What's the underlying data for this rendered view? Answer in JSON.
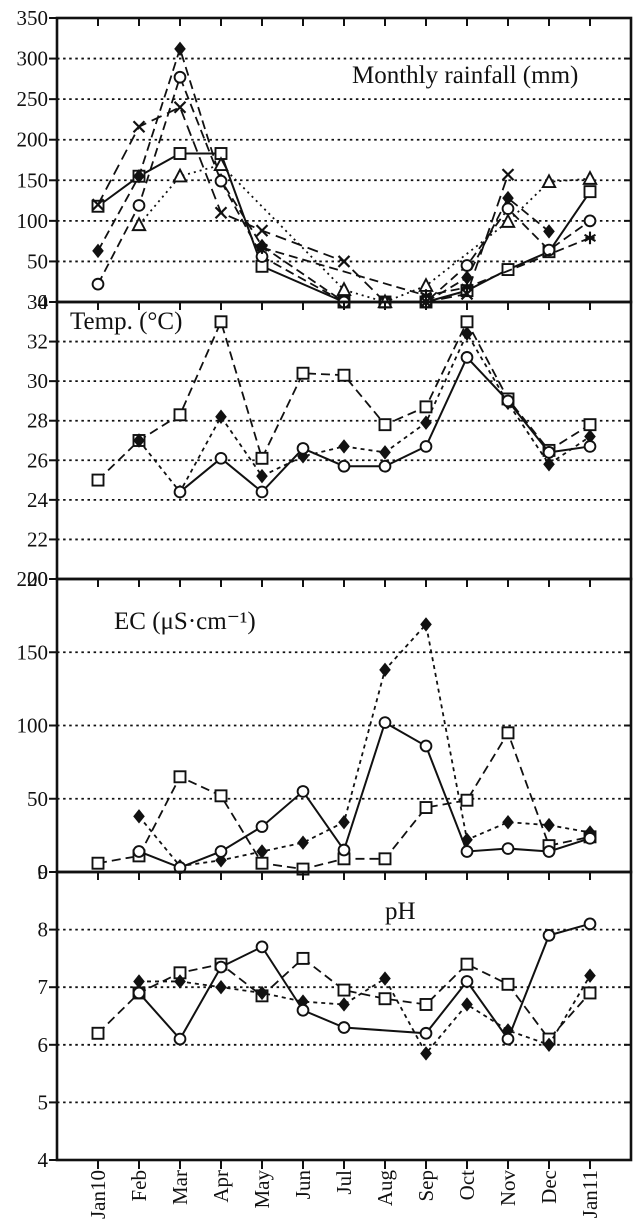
{
  "figure": {
    "ink_color": "#111111",
    "paper_color": "#ffffff",
    "months": [
      "Jan10",
      "Feb",
      "Mar",
      "Apr",
      "May",
      "Jun",
      "Jul",
      "Aug",
      "Sep",
      "Oct",
      "Nov",
      "Dec",
      "Jan11"
    ],
    "panels": [
      {
        "id": "rainfall",
        "title": "Monthly rainfall (mm)",
        "ylim": [
          0,
          350
        ],
        "yticks": [
          350,
          300,
          250,
          200,
          150,
          100,
          50,
          0
        ],
        "gridlines": [
          300,
          250,
          200,
          150,
          100,
          50
        ]
      },
      {
        "id": "temperature",
        "title": "Temp. (°C)",
        "ylim": [
          20,
          34
        ],
        "yticks": [
          34,
          32,
          30,
          28,
          26,
          24,
          22,
          20
        ],
        "gridlines": [
          32,
          30,
          28,
          26,
          24,
          22
        ]
      },
      {
        "id": "ec",
        "title": "EC (μS·cm⁻¹)",
        "ylim": [
          0,
          200
        ],
        "yticks": [
          200,
          150,
          100,
          50,
          0
        ],
        "gridlines": [
          150,
          100,
          50
        ]
      },
      {
        "id": "ph",
        "title": "pH",
        "ylim": [
          4,
          9
        ],
        "yticks": [
          9,
          8,
          7,
          6,
          5,
          4
        ],
        "gridlines": [
          8,
          7,
          6,
          5
        ]
      }
    ]
  },
  "chart_data": [
    {
      "type": "line",
      "panel": "rainfall",
      "title": "Monthly rainfall (mm)",
      "ylabel": "Monthly rainfall (mm)",
      "ylim": [
        0,
        350
      ],
      "grid": "dotted-horizontal",
      "legend": "none",
      "categories": [
        "Jan10",
        "Feb",
        "Mar",
        "Apr",
        "May",
        "Jun",
        "Jul",
        "Aug",
        "Sep",
        "Oct",
        "Nov",
        "Dec",
        "Jan11"
      ],
      "series": [
        {
          "name": "open-square",
          "marker": "open-square",
          "line": "solid",
          "values": [
            118,
            155,
            183,
            183,
            44,
            null,
            0,
            0,
            0,
            14,
            40,
            62,
            136
          ]
        },
        {
          "name": "filled-diamond",
          "marker": "filled-diamond",
          "line": "dashed",
          "values": [
            63,
            155,
            312,
            150,
            69,
            null,
            0,
            0,
            0,
            30,
            128,
            87,
            null
          ]
        },
        {
          "name": "open-circle",
          "marker": "open-circle",
          "line": "dashed",
          "values": [
            22,
            119,
            277,
            149,
            56,
            null,
            0,
            0,
            0,
            45,
            115,
            64,
            100
          ]
        },
        {
          "name": "x-cross",
          "marker": "x-cross",
          "line": "long-dash",
          "values": [
            120,
            216,
            240,
            110,
            88,
            null,
            50,
            0,
            0,
            10,
            157,
            null,
            null
          ]
        },
        {
          "name": "open-triangle",
          "marker": "open-triangle",
          "line": "dash-dot",
          "values": [
            null,
            95,
            155,
            169,
            null,
            null,
            15,
            0,
            20,
            null,
            99,
            148,
            152
          ]
        },
        {
          "name": "asterisk",
          "marker": "asterisk",
          "line": "dashed",
          "values": [
            null,
            null,
            null,
            null,
            67,
            null,
            null,
            null,
            8,
            18,
            null,
            null,
            79
          ]
        }
      ]
    },
    {
      "type": "line",
      "panel": "temperature",
      "title": "Temp. (°C)",
      "ylabel": "Temp. (°C)",
      "ylim": [
        20,
        34
      ],
      "grid": "dotted-horizontal",
      "legend": "none",
      "categories": [
        "Jan10",
        "Feb",
        "Mar",
        "Apr",
        "May",
        "Jun",
        "Jul",
        "Aug",
        "Sep",
        "Oct",
        "Nov",
        "Dec",
        "Jan11"
      ],
      "series": [
        {
          "name": "open-square",
          "marker": "open-square",
          "line": "dashed",
          "values": [
            25.0,
            27.0,
            28.3,
            33.0,
            26.1,
            30.4,
            30.3,
            27.8,
            28.7,
            33.0,
            29.1,
            26.5,
            27.8
          ]
        },
        {
          "name": "filled-diamond",
          "marker": "filled-diamond",
          "line": "short-dash",
          "values": [
            null,
            27.0,
            24.4,
            28.2,
            25.2,
            26.2,
            26.7,
            26.4,
            27.9,
            32.4,
            28.9,
            25.8,
            27.2
          ]
        },
        {
          "name": "open-circle",
          "marker": "open-circle",
          "line": "solid",
          "values": [
            null,
            null,
            24.4,
            26.1,
            24.4,
            26.6,
            25.7,
            25.7,
            26.7,
            31.2,
            29.0,
            26.4,
            26.7
          ]
        }
      ]
    },
    {
      "type": "line",
      "panel": "ec",
      "title": "EC (μS·cm⁻¹)",
      "ylabel": "EC (μS·cm⁻¹)",
      "ylim": [
        0,
        200
      ],
      "grid": "dotted-horizontal",
      "legend": "none",
      "categories": [
        "Jan10",
        "Feb",
        "Mar",
        "Apr",
        "May",
        "Jun",
        "Jul",
        "Aug",
        "Sep",
        "Oct",
        "Nov",
        "Dec",
        "Jan11"
      ],
      "series": [
        {
          "name": "open-square",
          "marker": "open-square",
          "line": "dashed",
          "values": [
            6,
            11,
            65,
            52,
            6,
            2,
            9,
            9,
            44,
            49,
            95,
            18,
            24
          ]
        },
        {
          "name": "filled-diamond",
          "marker": "filled-diamond",
          "line": "short-dash",
          "values": [
            null,
            38,
            4,
            8,
            14,
            20,
            34,
            138,
            169,
            22,
            34,
            32,
            27
          ]
        },
        {
          "name": "open-circle",
          "marker": "open-circle",
          "line": "solid",
          "values": [
            null,
            14,
            3,
            14,
            31,
            55,
            15,
            102,
            86,
            14,
            16,
            14,
            23
          ]
        }
      ]
    },
    {
      "type": "line",
      "panel": "ph",
      "title": "pH",
      "ylabel": "pH",
      "ylim": [
        4,
        9
      ],
      "grid": "dotted-horizontal",
      "legend": "none",
      "categories": [
        "Jan10",
        "Feb",
        "Mar",
        "Apr",
        "May",
        "Jun",
        "Jul",
        "Aug",
        "Sep",
        "Oct",
        "Nov",
        "Dec",
        "Jan11"
      ],
      "series": [
        {
          "name": "open-square",
          "marker": "open-square",
          "line": "dashed",
          "values": [
            6.2,
            6.9,
            7.25,
            7.4,
            6.85,
            7.5,
            6.95,
            6.8,
            6.7,
            7.4,
            7.05,
            6.1,
            6.9
          ]
        },
        {
          "name": "filled-diamond",
          "marker": "filled-diamond",
          "line": "short-dash",
          "values": [
            null,
            7.1,
            7.1,
            7.0,
            6.9,
            6.75,
            6.7,
            7.15,
            5.85,
            6.7,
            6.25,
            6.0,
            7.2
          ]
        },
        {
          "name": "open-circle",
          "marker": "open-circle",
          "line": "solid",
          "values": [
            null,
            6.9,
            6.1,
            7.35,
            7.7,
            6.6,
            6.3,
            null,
            6.2,
            7.1,
            6.1,
            7.9,
            8.1
          ]
        }
      ]
    }
  ]
}
